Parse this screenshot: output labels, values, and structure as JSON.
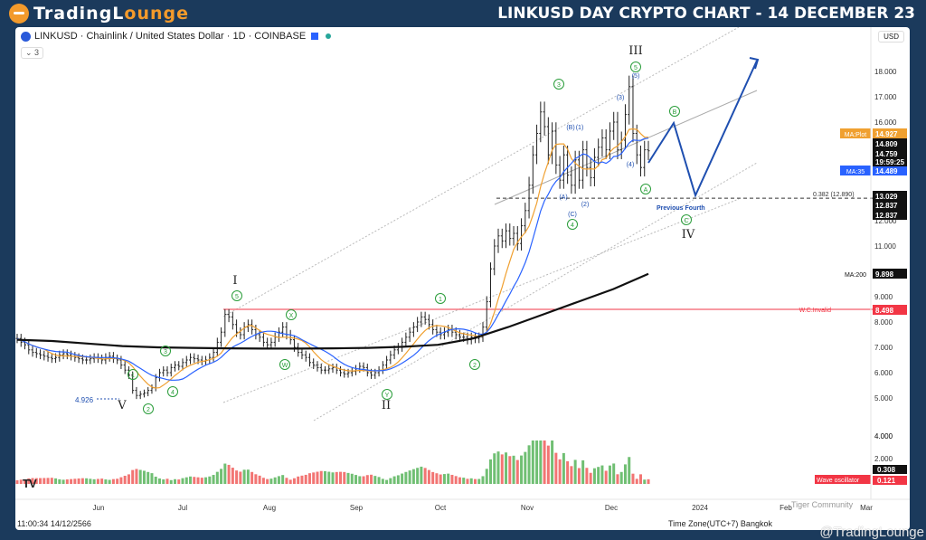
{
  "brand": {
    "part1": "TradingL",
    "part2": "ounge"
  },
  "headline": "LINKUSD DAY CRYPTO CHART - 14 DECEMBER 23",
  "legend": {
    "text": "LINKUSD · Chainlink / United States Dollar · 1D · COINBASE",
    "indicator_count": "3"
  },
  "currency": "USD",
  "timestamp": "11:00:34 14/12/2566",
  "timezone": "Time Zone(UTC+7) Bangkok",
  "watermark": "@TradingLounge",
  "watermark_small": "Tiger Community",
  "tv_logo": "TV",
  "chart_data": {
    "type": "candlestick",
    "symbol": "LINKUSD",
    "price_axis": {
      "ticks": [
        4,
        5,
        6,
        7,
        8,
        9,
        11,
        12,
        13,
        14,
        15,
        16,
        17,
        18
      ],
      "tick_labels": [
        "4.000",
        "5.000",
        "6.000",
        "7.000",
        "8.000",
        "9.000",
        "11.000",
        "12.000",
        "13.000",
        "14.000",
        "15.000",
        "16.000",
        "17.000",
        "18.000"
      ]
    },
    "time_axis": {
      "ticks": [
        "Jun",
        "Jul",
        "Aug",
        "Sep",
        "Oct",
        "Nov",
        "Dec",
        "2024",
        "Feb",
        "Mar"
      ]
    },
    "osc_axis": {
      "ticks": [
        2,
        4
      ],
      "tick_labels": [
        "2.000",
        "4.000"
      ]
    },
    "prices": [
      7.35,
      7.2,
      7.1,
      6.9,
      6.8,
      6.75,
      6.7,
      6.65,
      6.6,
      6.55,
      6.6,
      6.7,
      6.75,
      6.7,
      6.65,
      6.6,
      6.55,
      6.5,
      6.5,
      6.55,
      6.6,
      6.55,
      6.5,
      6.6,
      6.65,
      6.55,
      6.5,
      6.3,
      6.1,
      5.9,
      5.3,
      5.1,
      5.15,
      5.2,
      5.3,
      5.4,
      5.8,
      6.0,
      6.1,
      6.0,
      6.2,
      6.3,
      6.25,
      6.4,
      6.5,
      6.6,
      6.55,
      6.5,
      6.45,
      6.5,
      6.6,
      6.8,
      7.2,
      7.6,
      8.3,
      8.2,
      7.9,
      7.6,
      7.5,
      7.8,
      7.9,
      7.7,
      7.5,
      7.4,
      7.2,
      7.1,
      7.2,
      7.4,
      7.6,
      7.8,
      7.5,
      7.3,
      7.0,
      6.8,
      6.7,
      6.6,
      6.4,
      6.3,
      6.2,
      6.1,
      6.1,
      6.15,
      6.2,
      6.1,
      6.0,
      5.95,
      6.0,
      6.05,
      6.15,
      6.25,
      6.2,
      6.0,
      5.9,
      6.0,
      6.1,
      6.3,
      6.5,
      6.7,
      6.9,
      7.0,
      7.2,
      7.4,
      7.6,
      7.8,
      8.0,
      8.2,
      8.1,
      7.9,
      7.7,
      7.6,
      7.5,
      7.6,
      7.7,
      7.6,
      7.5,
      7.4,
      7.4,
      7.3,
      7.4,
      7.35,
      7.4,
      7.8,
      8.8,
      10.1,
      11.0,
      11.4,
      11.2,
      11.6,
      11.3,
      11.5,
      11.1,
      11.8,
      12.4,
      13.4,
      14.6,
      15.5,
      16.4,
      15.8,
      14.6,
      15.6,
      14.2,
      13.6,
      14.6,
      13.8,
      13.4,
      14.4,
      13.6,
      14.8,
      14.1,
      13.7,
      14.5,
      14.9,
      15.3,
      14.8,
      15.6,
      16.0,
      14.8,
      15.2,
      16.3,
      17.4,
      15.5,
      14.6,
      14.1,
      14.8,
      14.76
    ],
    "moving_averages": [
      {
        "name": "MA:Plot",
        "value": "14.927",
        "color": "#f0a030"
      },
      {
        "name": "MA:35",
        "value": "14.489",
        "color": "#2962ff"
      },
      {
        "name": "MA:200",
        "value": "9.898",
        "color": "#111111"
      }
    ],
    "price_labels": [
      {
        "value": "14.809",
        "color": "#111111"
      },
      {
        "value": "14.759",
        "color": "#111111"
      },
      {
        "value": "19:59:25",
        "color": "#111111"
      },
      {
        "value": "13.029",
        "color": "#111111"
      },
      {
        "value": "12.837",
        "color": "#111111"
      },
      {
        "value": "12.837",
        "color": "#111111"
      },
      {
        "value": "8.498",
        "color": "#f23645"
      }
    ],
    "horizontal_levels": [
      {
        "label": "W.C.Invalid",
        "value": 8.498,
        "color": "#f23645"
      },
      {
        "label": "0.382 (12.890)",
        "value": 12.89,
        "color": "#333333"
      }
    ],
    "annotations": {
      "previous_fourth": "Previous Fourth",
      "low_label": "4.926"
    },
    "wave_labels_major": [
      "I",
      "II",
      "III",
      "IV",
      "V"
    ],
    "wave_labels_minor": [
      "1",
      "2",
      "3",
      "4",
      "5",
      "A",
      "B",
      "C",
      "W",
      "X",
      "Y",
      "(A)",
      "(B)",
      "(C)",
      "(1)",
      "(2)",
      "(3)",
      "(4)",
      "(5)"
    ],
    "oscillator": {
      "name": "Wave oscillator",
      "values_shown": [
        "0.308",
        "0.121"
      ]
    }
  }
}
